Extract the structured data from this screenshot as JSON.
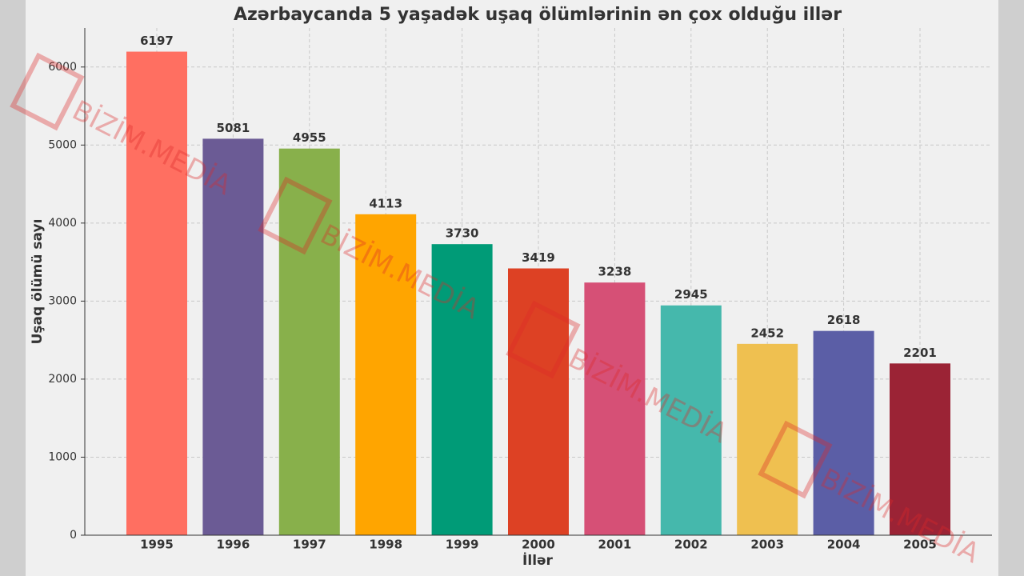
{
  "chart_data": {
    "type": "bar",
    "title": "Azərbaycanda 5 yaşadək uşaq ölümlərinin ən çox olduğu illər",
    "x_label": "İllər",
    "y_label": "Uşaq ölümü sayı",
    "categories": [
      "1995",
      "1996",
      "1997",
      "1998",
      "1999",
      "2000",
      "2001",
      "2002",
      "2003",
      "2004",
      "2005"
    ],
    "values": [
      6197,
      5081,
      4955,
      4113,
      3730,
      3419,
      3238,
      2945,
      2452,
      2618,
      2201
    ],
    "colors": [
      "#ff6f61",
      "#6b5b95",
      "#88b04b",
      "#ffa500",
      "#009b77",
      "#dd4124",
      "#d65076",
      "#45b8ac",
      "#efc050",
      "#5b5ea6",
      "#9b2335"
    ],
    "ylim": [
      0,
      6500
    ],
    "yticks": [
      0,
      1000,
      2000,
      3000,
      4000,
      5000,
      6000
    ],
    "grid": true,
    "watermark": "BİZİM.MEDİA"
  }
}
